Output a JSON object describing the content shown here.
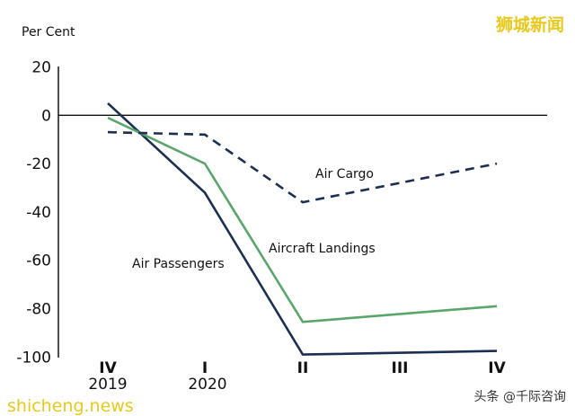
{
  "chart_data": {
    "type": "line",
    "ylabel": "Per Cent",
    "ylim": [
      -100,
      20
    ],
    "yticks": [
      20,
      0,
      -20,
      -40,
      -60,
      -80,
      -100
    ],
    "categories": [
      "IV",
      "I",
      "II",
      "III",
      "IV"
    ],
    "year_labels": [
      "2019",
      "2020"
    ],
    "grid": false,
    "series": [
      {
        "name": "Air Passengers",
        "color": "#1b2f52",
        "style": "solid",
        "x": [
          "IV 2019",
          "I 2020",
          "II 2020",
          "IV 2020"
        ],
        "values": [
          5,
          -32,
          -99,
          -97.5
        ]
      },
      {
        "name": "Aircraft Landings",
        "color": "#5aa66a",
        "style": "solid",
        "x": [
          "IV 2019",
          "I 2020",
          "II 2020",
          "IV 2020"
        ],
        "values": [
          -1,
          -20,
          -85.5,
          -79
        ]
      },
      {
        "name": "Air Cargo",
        "color": "#1b2f52",
        "style": "dashed",
        "x": [
          "IV 2019",
          "I 2020",
          "II 2020",
          "IV 2020"
        ],
        "values": [
          -7,
          -8,
          -36,
          -20
        ]
      }
    ]
  },
  "watermarks": {
    "top_right": "狮城新闻",
    "bottom_left": "shicheng.news",
    "bottom_right": "头条 @千际咨询"
  },
  "colors": {
    "watermark_yellow": "#e8c81a"
  }
}
